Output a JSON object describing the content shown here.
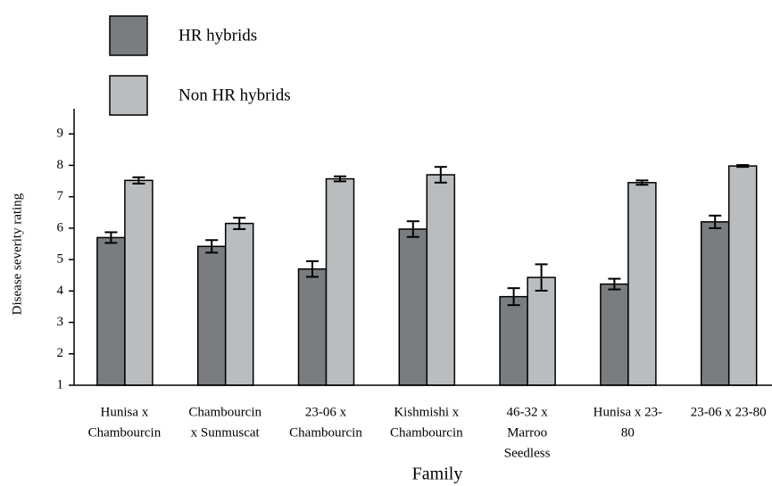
{
  "chart_data": {
    "type": "bar",
    "categories": [
      [
        "Hunisa x",
        "Chambourcin"
      ],
      [
        "Chambourcin",
        "x Sunmuscat"
      ],
      [
        "23-06 x",
        "Chambourcin"
      ],
      [
        "Kishmishi x",
        "Chambourcin"
      ],
      [
        "46-32 x",
        "Marroo",
        "Seedless"
      ],
      [
        "Hunisa x 23-",
        "80"
      ],
      [
        "23-06 x 23-80"
      ]
    ],
    "series": [
      {
        "name": "HR hybrids",
        "color": "#7a7d80",
        "values": [
          5.7,
          5.42,
          4.7,
          5.97,
          3.82,
          4.22,
          6.2
        ],
        "errors": [
          0.17,
          0.2,
          0.25,
          0.25,
          0.27,
          0.17,
          0.2
        ]
      },
      {
        "name": "Non HR hybrids",
        "color": "#b9bdbf",
        "values": [
          7.52,
          6.15,
          7.57,
          7.7,
          4.43,
          7.45,
          7.98
        ],
        "errors": [
          0.1,
          0.18,
          0.08,
          0.25,
          0.42,
          0.07,
          0.03
        ]
      }
    ],
    "x_label": "Family",
    "y_label": "Disease severity rating",
    "ylim": [
      1,
      9.8
    ],
    "yticks": [
      1,
      2,
      3,
      4,
      5,
      6,
      7,
      8,
      9
    ]
  }
}
